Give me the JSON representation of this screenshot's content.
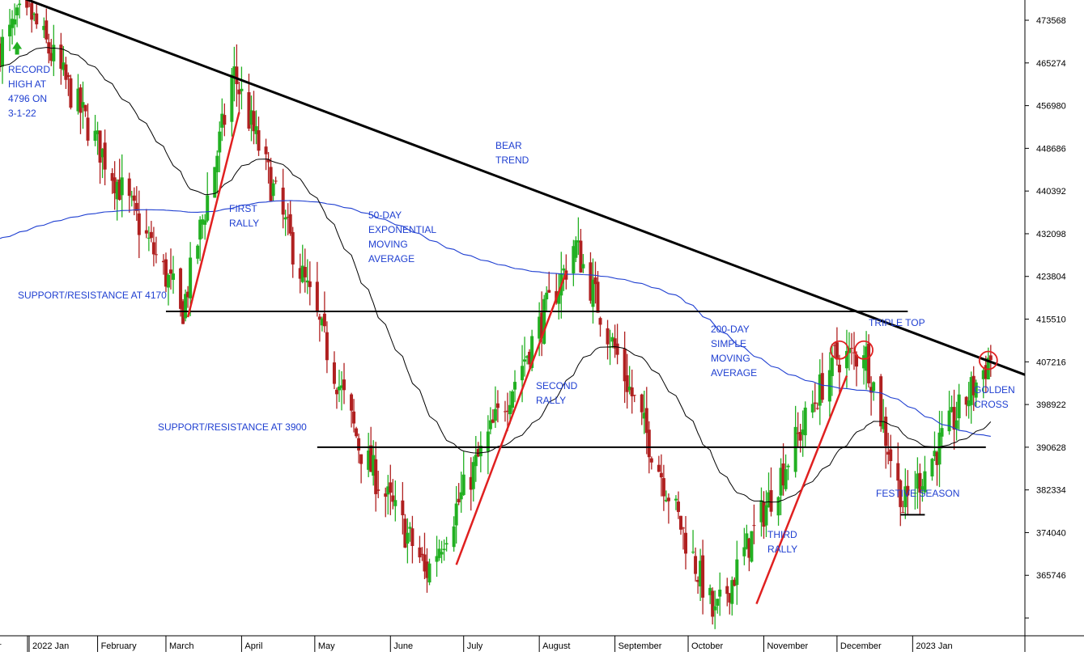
{
  "chart_data": {
    "type": "candlestick",
    "x_labels": [
      "2022 Jan",
      "February",
      "March",
      "April",
      "May",
      "June",
      "July",
      "August",
      "September",
      "October",
      "November",
      "December",
      "2023 Jan"
    ],
    "y_ticks": [
      365746,
      374040,
      382334,
      390628,
      398922,
      407216,
      415510,
      423804,
      432098,
      440392,
      448686,
      456980,
      465274,
      473568
    ],
    "ylim": [
      354000,
      477500
    ],
    "colors": {
      "up": "#22b022",
      "down": "#b02020",
      "ema50": "#000000",
      "sma200": "#1f3fd1",
      "trend": "#000000",
      "rally": "#e02020",
      "circle": "#e02020",
      "annotation": "#1f3fd1"
    },
    "annotations": [
      {
        "lines": [
          "RECORD",
          "HIGH AT",
          "4796 ON",
          "3-1-22"
        ]
      },
      {
        "lines": [
          "FIRST",
          "RALLY"
        ]
      },
      {
        "lines": [
          "50-DAY",
          "EXPONENTIAL",
          "MOVING",
          "AVERAGE"
        ]
      },
      {
        "lines": [
          "BEAR",
          "TREND"
        ]
      },
      {
        "lines": [
          "SUPPORT/RESISTANCE AT 4170"
        ]
      },
      {
        "lines": [
          "SUPPORT/RESISTANCE AT 3900"
        ]
      },
      {
        "lines": [
          "SECOND",
          "RALLY"
        ]
      },
      {
        "lines": [
          "200-DAY",
          "SIMPLE",
          "MOVING",
          "AVERAGE"
        ]
      },
      {
        "lines": [
          "TRIPLE TOP"
        ]
      },
      {
        "lines": [
          "GOLDEN",
          "CROSS"
        ]
      },
      {
        "lines": [
          "FESTIVE SEASON"
        ]
      },
      {
        "lines": [
          "THIRD",
          "RALLY"
        ]
      }
    ],
    "key_closes": [
      {
        "date": "2022-01-03",
        "close": 476000
      },
      {
        "date": "2022-03-08",
        "close": 417500
      },
      {
        "date": "2022-03-29",
        "close": 463000
      },
      {
        "date": "2022-05-20",
        "close": 390000
      },
      {
        "date": "2022-06-16",
        "close": 366500
      },
      {
        "date": "2022-08-16",
        "close": 429700
      },
      {
        "date": "2022-10-12",
        "close": 357700
      },
      {
        "date": "2022-11-30",
        "close": 408000
      },
      {
        "date": "2022-12-13",
        "close": 408500
      },
      {
        "date": "2022-12-28",
        "close": 379000
      },
      {
        "date": "2023-02-02",
        "close": 408000
      }
    ]
  }
}
